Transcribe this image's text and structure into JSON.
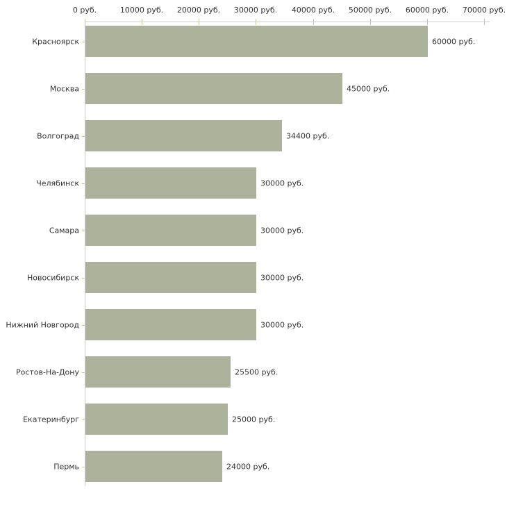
{
  "chart_data": {
    "type": "bar",
    "orientation": "horizontal",
    "title": "",
    "xlabel": "",
    "ylabel": "",
    "unit": "руб.",
    "categories": [
      "Красноярск",
      "Москва",
      "Волгоград",
      "Челябинск",
      "Самара",
      "Новосибирск",
      "Нижний Новгород",
      "Ростов-На-Дону",
      "Екатеринбург",
      "Пермь"
    ],
    "values": [
      60000,
      45000,
      34400,
      30000,
      30000,
      30000,
      30000,
      25500,
      25000,
      24000
    ],
    "value_labels": [
      "60000 руб.",
      "45000 руб.",
      "34400 руб.",
      "30000 руб.",
      "30000 руб.",
      "30000 руб.",
      "30000 руб.",
      "25500 руб.",
      "25000 руб.",
      "24000 руб."
    ],
    "x_ticks": [
      0,
      10000,
      20000,
      30000,
      40000,
      50000,
      60000,
      70000
    ],
    "x_tick_labels": [
      "0 руб.",
      "10000 руб.",
      "20000 руб.",
      "30000 руб.",
      "40000 руб.",
      "50000 руб.",
      "60000 руб.",
      "70000 руб."
    ],
    "xlim": [
      0,
      70000
    ],
    "axis_position": "top",
    "grid": false,
    "legend": null,
    "colors": {
      "bar": "#acb39a",
      "axis_line": "#cccccc",
      "tick_mark": "#c5c79c",
      "text": "#333333",
      "background": "#ffffff"
    }
  }
}
